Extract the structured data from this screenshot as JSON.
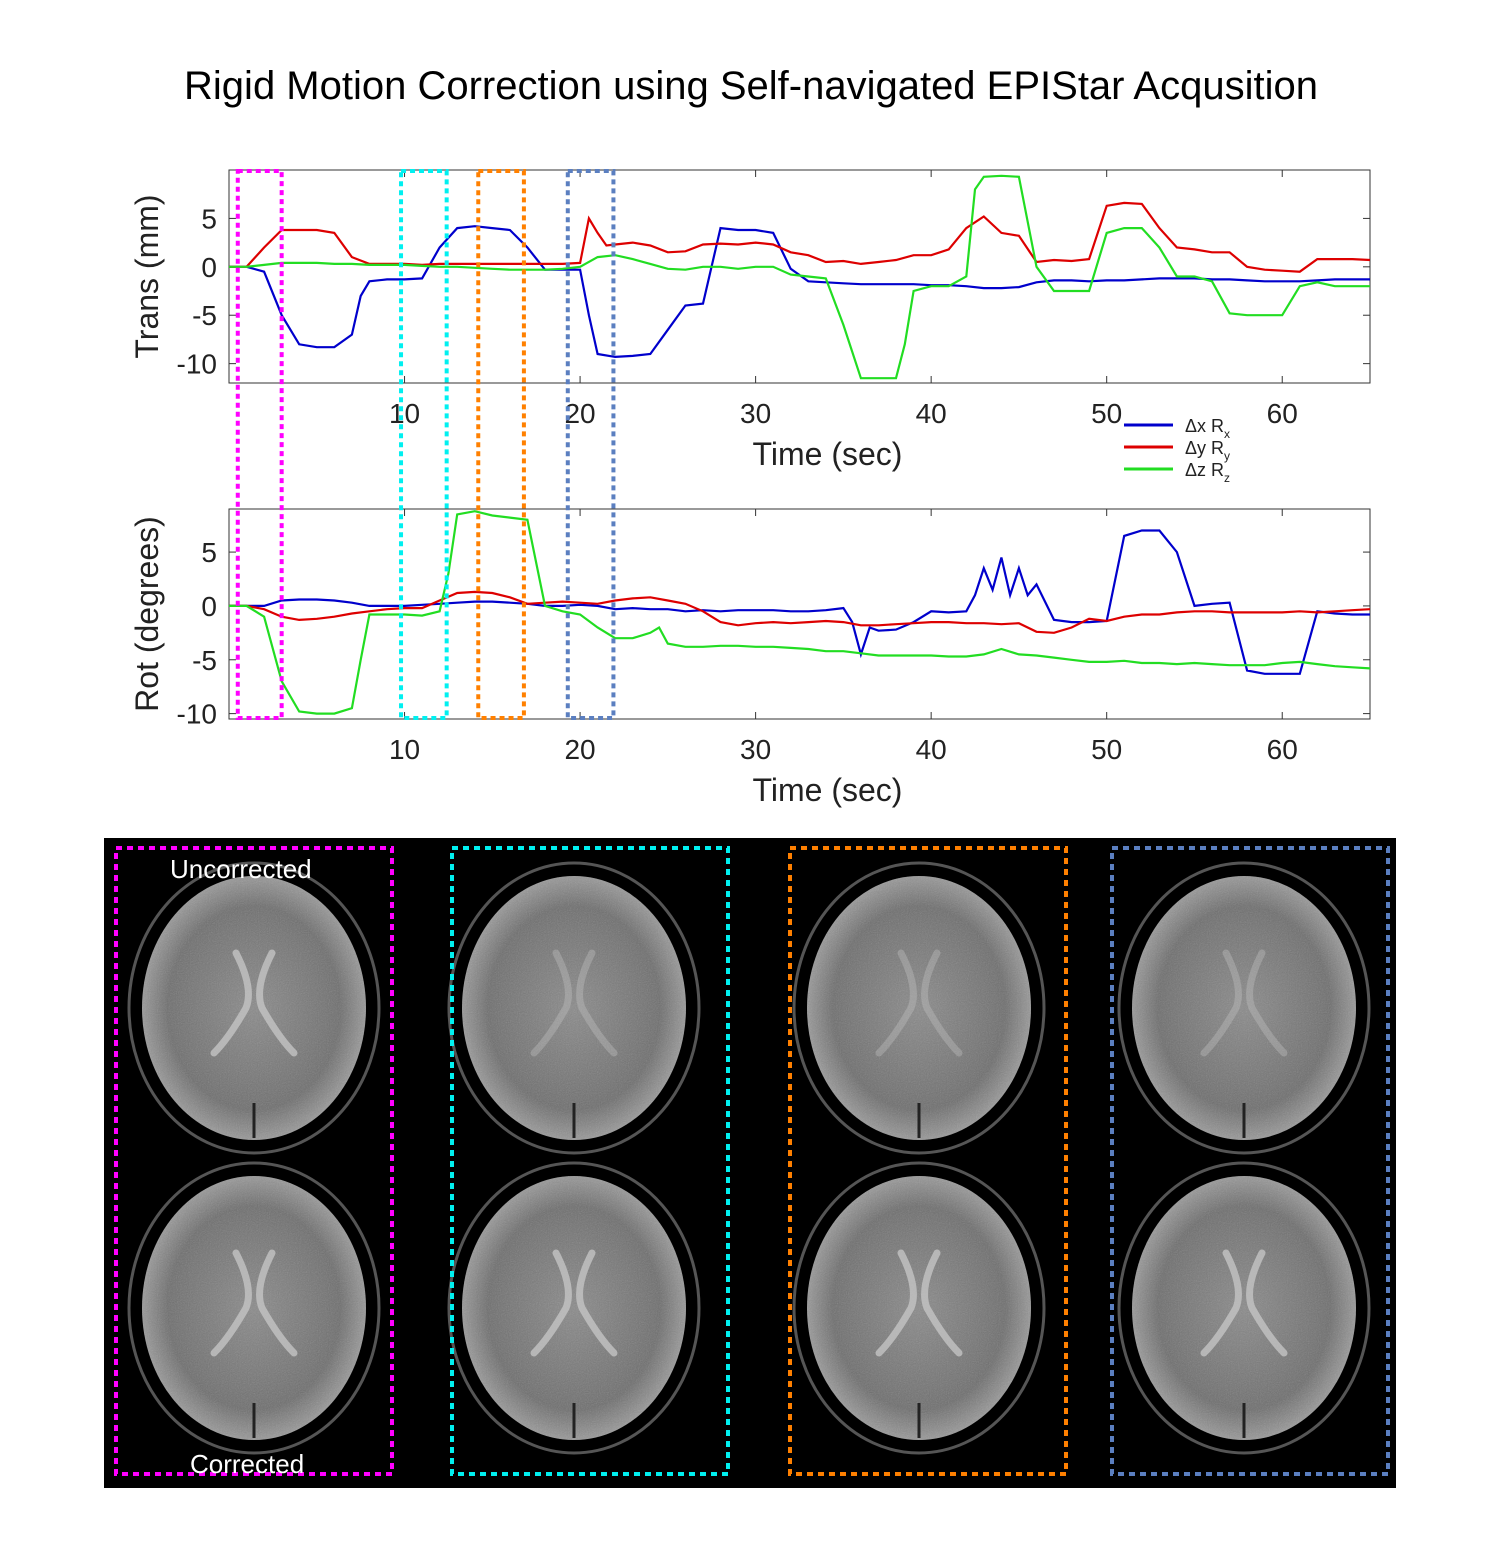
{
  "title": "Rigid Motion Correction using Self-navigated EPIStar Acqusition",
  "chart_data": [
    {
      "type": "line",
      "ylabel": "Trans (mm)",
      "xlabel": "Time (sec)",
      "xlim": [
        0,
        65
      ],
      "ylim": [
        -12,
        10
      ],
      "xticks": [
        10,
        20,
        30,
        40,
        50,
        60
      ],
      "yticks": [
        5,
        0,
        -5,
        -10
      ],
      "grid": false,
      "legend": "bottom-right",
      "series": [
        {
          "name": "Δx",
          "sub": "R",
          "subscript": "x",
          "color": "#0000cc",
          "x": [
            0,
            1,
            2,
            3,
            4,
            5,
            6,
            7,
            7.5,
            8,
            9,
            10,
            11,
            12,
            13,
            14,
            15,
            16,
            17,
            18,
            19,
            20,
            20.5,
            21,
            22,
            23,
            24,
            25,
            26,
            27,
            28,
            29,
            30,
            31,
            32,
            33,
            34,
            35,
            36,
            37,
            38,
            39,
            40,
            41,
            42,
            43,
            44,
            45,
            46,
            47,
            48,
            49,
            50,
            51,
            52,
            53,
            54,
            55,
            56,
            57,
            58,
            59,
            60,
            61,
            62,
            63,
            64,
            65
          ],
          "y": [
            0,
            0,
            -0.5,
            -5,
            -8,
            -8.3,
            -8.3,
            -7,
            -3,
            -1.5,
            -1.3,
            -1.3,
            -1.2,
            2,
            4,
            4.2,
            4,
            3.8,
            2,
            -0.3,
            -0.3,
            -0.3,
            -5,
            -9,
            -9.3,
            -9.2,
            -9,
            -6.5,
            -4,
            -3.8,
            4,
            3.8,
            3.8,
            3.5,
            -0.2,
            -1.5,
            -1.6,
            -1.7,
            -1.8,
            -1.8,
            -1.8,
            -1.8,
            -1.9,
            -1.9,
            -2,
            -2.2,
            -2.2,
            -2.1,
            -1.6,
            -1.4,
            -1.4,
            -1.5,
            -1.4,
            -1.4,
            -1.3,
            -1.2,
            -1.2,
            -1.2,
            -1.3,
            -1.3,
            -1.4,
            -1.5,
            -1.5,
            -1.5,
            -1.4,
            -1.3,
            -1.3,
            -1.3
          ]
        },
        {
          "name": "Δy",
          "sub": "R",
          "subscript": "y",
          "color": "#dd0000",
          "x": [
            0,
            1,
            2,
            3,
            4,
            5,
            6,
            7,
            8,
            9,
            10,
            11,
            12,
            13,
            14,
            15,
            16,
            17,
            18,
            19,
            20,
            20.5,
            21,
            21.5,
            22,
            23,
            24,
            25,
            26,
            27,
            28,
            29,
            30,
            31,
            32,
            33,
            34,
            35,
            36,
            37,
            38,
            39,
            40,
            41,
            42,
            43,
            44,
            45,
            46,
            47,
            48,
            49,
            50,
            51,
            52,
            53,
            54,
            55,
            56,
            57,
            58,
            59,
            60,
            61,
            62,
            63,
            64,
            65
          ],
          "y": [
            0,
            0,
            2,
            3.8,
            3.8,
            3.8,
            3.5,
            1,
            0.3,
            0.3,
            0.3,
            0.2,
            0.3,
            0.3,
            0.3,
            0.3,
            0.3,
            0.3,
            0.3,
            0.3,
            0.4,
            5,
            3.5,
            2.2,
            2.3,
            2.5,
            2.2,
            1.5,
            1.6,
            2.3,
            2.4,
            2.3,
            2.5,
            2.3,
            1.5,
            1.2,
            0.5,
            0.6,
            0.3,
            0.5,
            0.7,
            1.2,
            1.2,
            1.8,
            4,
            5.2,
            3.5,
            3.2,
            0.5,
            0.7,
            0.6,
            0.8,
            6.3,
            6.6,
            6.5,
            4,
            2,
            1.8,
            1.5,
            1.5,
            0,
            -0.3,
            -0.4,
            -0.5,
            0.8,
            0.8,
            0.8,
            0.7
          ]
        },
        {
          "name": "Δz",
          "sub": "R",
          "subscript": "z",
          "color": "#22dd22",
          "x": [
            0,
            1,
            2,
            3,
            4,
            5,
            6,
            7,
            8,
            9,
            10,
            11,
            12,
            13,
            14,
            15,
            16,
            17,
            18,
            19,
            20,
            21,
            22,
            23,
            24,
            25,
            26,
            27,
            28,
            29,
            30,
            31,
            32,
            33,
            34,
            35,
            36,
            37,
            38,
            38.5,
            39,
            40,
            41,
            42,
            42.5,
            43,
            44,
            45,
            46,
            47,
            48,
            49,
            50,
            51,
            52,
            53,
            54,
            55,
            56,
            57,
            58,
            59,
            60,
            61,
            62,
            63,
            64,
            65
          ],
          "y": [
            0,
            0,
            0.2,
            0.4,
            0.4,
            0.4,
            0.3,
            0.3,
            0.2,
            0.2,
            0.2,
            0.1,
            0,
            0,
            -0.1,
            -0.2,
            -0.3,
            -0.3,
            -0.3,
            -0.2,
            0,
            1,
            1.2,
            0.8,
            0.3,
            -0.2,
            -0.3,
            0,
            0,
            -0.2,
            0,
            0,
            -0.8,
            -1,
            -1.2,
            -6,
            -11.5,
            -11.5,
            -11.5,
            -8,
            -2.5,
            -2,
            -2,
            -1,
            8,
            9.3,
            9.4,
            9.3,
            0,
            -2.5,
            -2.5,
            -2.5,
            3.5,
            4,
            4,
            2,
            -1,
            -1,
            -1.5,
            -4.8,
            -5,
            -5,
            -5,
            -2,
            -1.6,
            -2,
            -2,
            -2
          ]
        }
      ]
    },
    {
      "type": "line",
      "ylabel": "Rot (degrees)",
      "xlabel": "Time (sec)",
      "xlim": [
        0,
        65
      ],
      "ylim": [
        -10.5,
        9
      ],
      "xticks": [
        10,
        20,
        30,
        40,
        50,
        60
      ],
      "yticks": [
        5,
        0,
        -5,
        -10
      ],
      "grid": false,
      "series": [
        {
          "name": "Rx",
          "color": "#0000cc",
          "x": [
            0,
            1,
            2,
            3,
            4,
            5,
            6,
            7,
            8,
            9,
            10,
            11,
            12,
            13,
            14,
            15,
            16,
            17,
            18,
            19,
            20,
            21,
            22,
            23,
            24,
            25,
            26,
            27,
            28,
            29,
            30,
            31,
            32,
            33,
            34,
            35,
            35.5,
            36,
            36.5,
            37,
            38,
            39,
            40,
            41,
            42,
            42.5,
            43,
            43.5,
            44,
            44.5,
            45,
            45.5,
            46,
            47,
            48,
            49,
            50,
            51,
            52,
            53,
            54,
            55,
            56,
            57,
            58,
            59,
            60,
            61,
            62,
            63,
            64,
            65
          ],
          "y": [
            0,
            0,
            0,
            0.5,
            0.6,
            0.6,
            0.5,
            0.3,
            0,
            0,
            0,
            0.1,
            0.2,
            0.3,
            0.4,
            0.4,
            0.3,
            0.2,
            0,
            0,
            0.1,
            0,
            -0.3,
            -0.2,
            -0.3,
            -0.3,
            -0.5,
            -0.4,
            -0.5,
            -0.4,
            -0.4,
            -0.4,
            -0.5,
            -0.5,
            -0.4,
            -0.2,
            -1.5,
            -4.5,
            -2,
            -2.3,
            -2.2,
            -1.5,
            -0.5,
            -0.6,
            -0.5,
            1,
            3.5,
            1.5,
            4.5,
            1,
            3.5,
            1,
            2,
            -1.3,
            -1.5,
            -1.5,
            -1.4,
            6.5,
            7,
            7,
            5,
            0,
            0.2,
            0.3,
            -6,
            -6.3,
            -6.3,
            -6.3,
            -0.5,
            -0.7,
            -0.8,
            -0.8
          ]
        },
        {
          "name": "Ry",
          "color": "#dd0000",
          "x": [
            0,
            1,
            2,
            3,
            4,
            5,
            6,
            7,
            8,
            9,
            10,
            11,
            12,
            13,
            14,
            15,
            16,
            17,
            18,
            19,
            20,
            21,
            22,
            23,
            24,
            25,
            26,
            27,
            28,
            29,
            30,
            31,
            32,
            33,
            34,
            35,
            36,
            37,
            38,
            39,
            40,
            41,
            42,
            43,
            44,
            45,
            46,
            47,
            48,
            49,
            50,
            51,
            52,
            53,
            54,
            55,
            56,
            57,
            58,
            59,
            60,
            61,
            62,
            63,
            64,
            65
          ],
          "y": [
            0,
            0,
            -0.3,
            -1,
            -1.3,
            -1.2,
            -1,
            -0.7,
            -0.5,
            -0.3,
            -0.2,
            -0.2,
            0.5,
            1.2,
            1.3,
            1.2,
            0.8,
            0.2,
            0.3,
            0.4,
            0.3,
            0.2,
            0.5,
            0.7,
            0.8,
            0.5,
            0.2,
            -0.5,
            -1.5,
            -1.8,
            -1.6,
            -1.5,
            -1.6,
            -1.5,
            -1.4,
            -1.5,
            -1.8,
            -1.8,
            -1.7,
            -1.6,
            -1.5,
            -1.5,
            -1.6,
            -1.6,
            -1.7,
            -1.6,
            -2.4,
            -2.5,
            -2,
            -1.2,
            -1.4,
            -1,
            -0.8,
            -0.8,
            -0.6,
            -0.5,
            -0.5,
            -0.6,
            -0.6,
            -0.6,
            -0.6,
            -0.5,
            -0.6,
            -0.5,
            -0.4,
            -0.3
          ]
        },
        {
          "name": "Rz",
          "color": "#22dd22",
          "x": [
            0,
            1,
            2,
            3,
            4,
            5,
            6,
            7,
            7.5,
            8,
            9,
            10,
            11,
            12,
            12.5,
            13,
            14,
            15,
            16,
            17,
            18,
            19,
            20,
            21,
            22,
            23,
            24,
            24.5,
            25,
            26,
            27,
            28,
            29,
            30,
            31,
            32,
            33,
            34,
            35,
            36,
            37,
            38,
            39,
            40,
            41,
            42,
            43,
            44,
            45,
            46,
            47,
            48,
            49,
            50,
            51,
            52,
            53,
            54,
            55,
            56,
            57,
            58,
            59,
            60,
            61,
            62,
            63,
            64,
            65
          ],
          "y": [
            0,
            0,
            -1,
            -7,
            -9.8,
            -10,
            -10,
            -9.5,
            -5,
            -0.8,
            -0.8,
            -0.8,
            -0.9,
            -0.5,
            3,
            8.5,
            8.8,
            8.4,
            8.2,
            8,
            0,
            -0.5,
            -0.8,
            -2,
            -3,
            -3,
            -2.5,
            -2,
            -3.5,
            -3.8,
            -3.8,
            -3.7,
            -3.7,
            -3.8,
            -3.8,
            -3.9,
            -4,
            -4.2,
            -4.2,
            -4.4,
            -4.6,
            -4.6,
            -4.6,
            -4.6,
            -4.7,
            -4.7,
            -4.5,
            -4,
            -4.5,
            -4.6,
            -4.8,
            -5,
            -5.2,
            -5.2,
            -5.1,
            -5.3,
            -5.3,
            -5.4,
            -5.3,
            -5.4,
            -5.5,
            -5.5,
            -5.5,
            -5.3,
            -5.2,
            -5.4,
            -5.6,
            -5.7,
            -5.8
          ]
        }
      ]
    }
  ],
  "highlight_windows": [
    {
      "name": "magenta",
      "color": "#ff00ff",
      "x": [
        0.5,
        3
      ]
    },
    {
      "name": "cyan",
      "color": "#00f0f0",
      "x": [
        9.8,
        12.4
      ]
    },
    {
      "name": "orange",
      "color": "#ff8000",
      "x": [
        14.2,
        16.8
      ]
    },
    {
      "name": "blue",
      "color": "#5b7fc0",
      "x": [
        19.3,
        21.9
      ]
    }
  ],
  "brain_panel": {
    "label_top": "Uncorrected",
    "label_bottom": "Corrected",
    "frame_colors": [
      "#ff00ff",
      "#00f0f0",
      "#ff8000",
      "#5b7fc0"
    ]
  }
}
